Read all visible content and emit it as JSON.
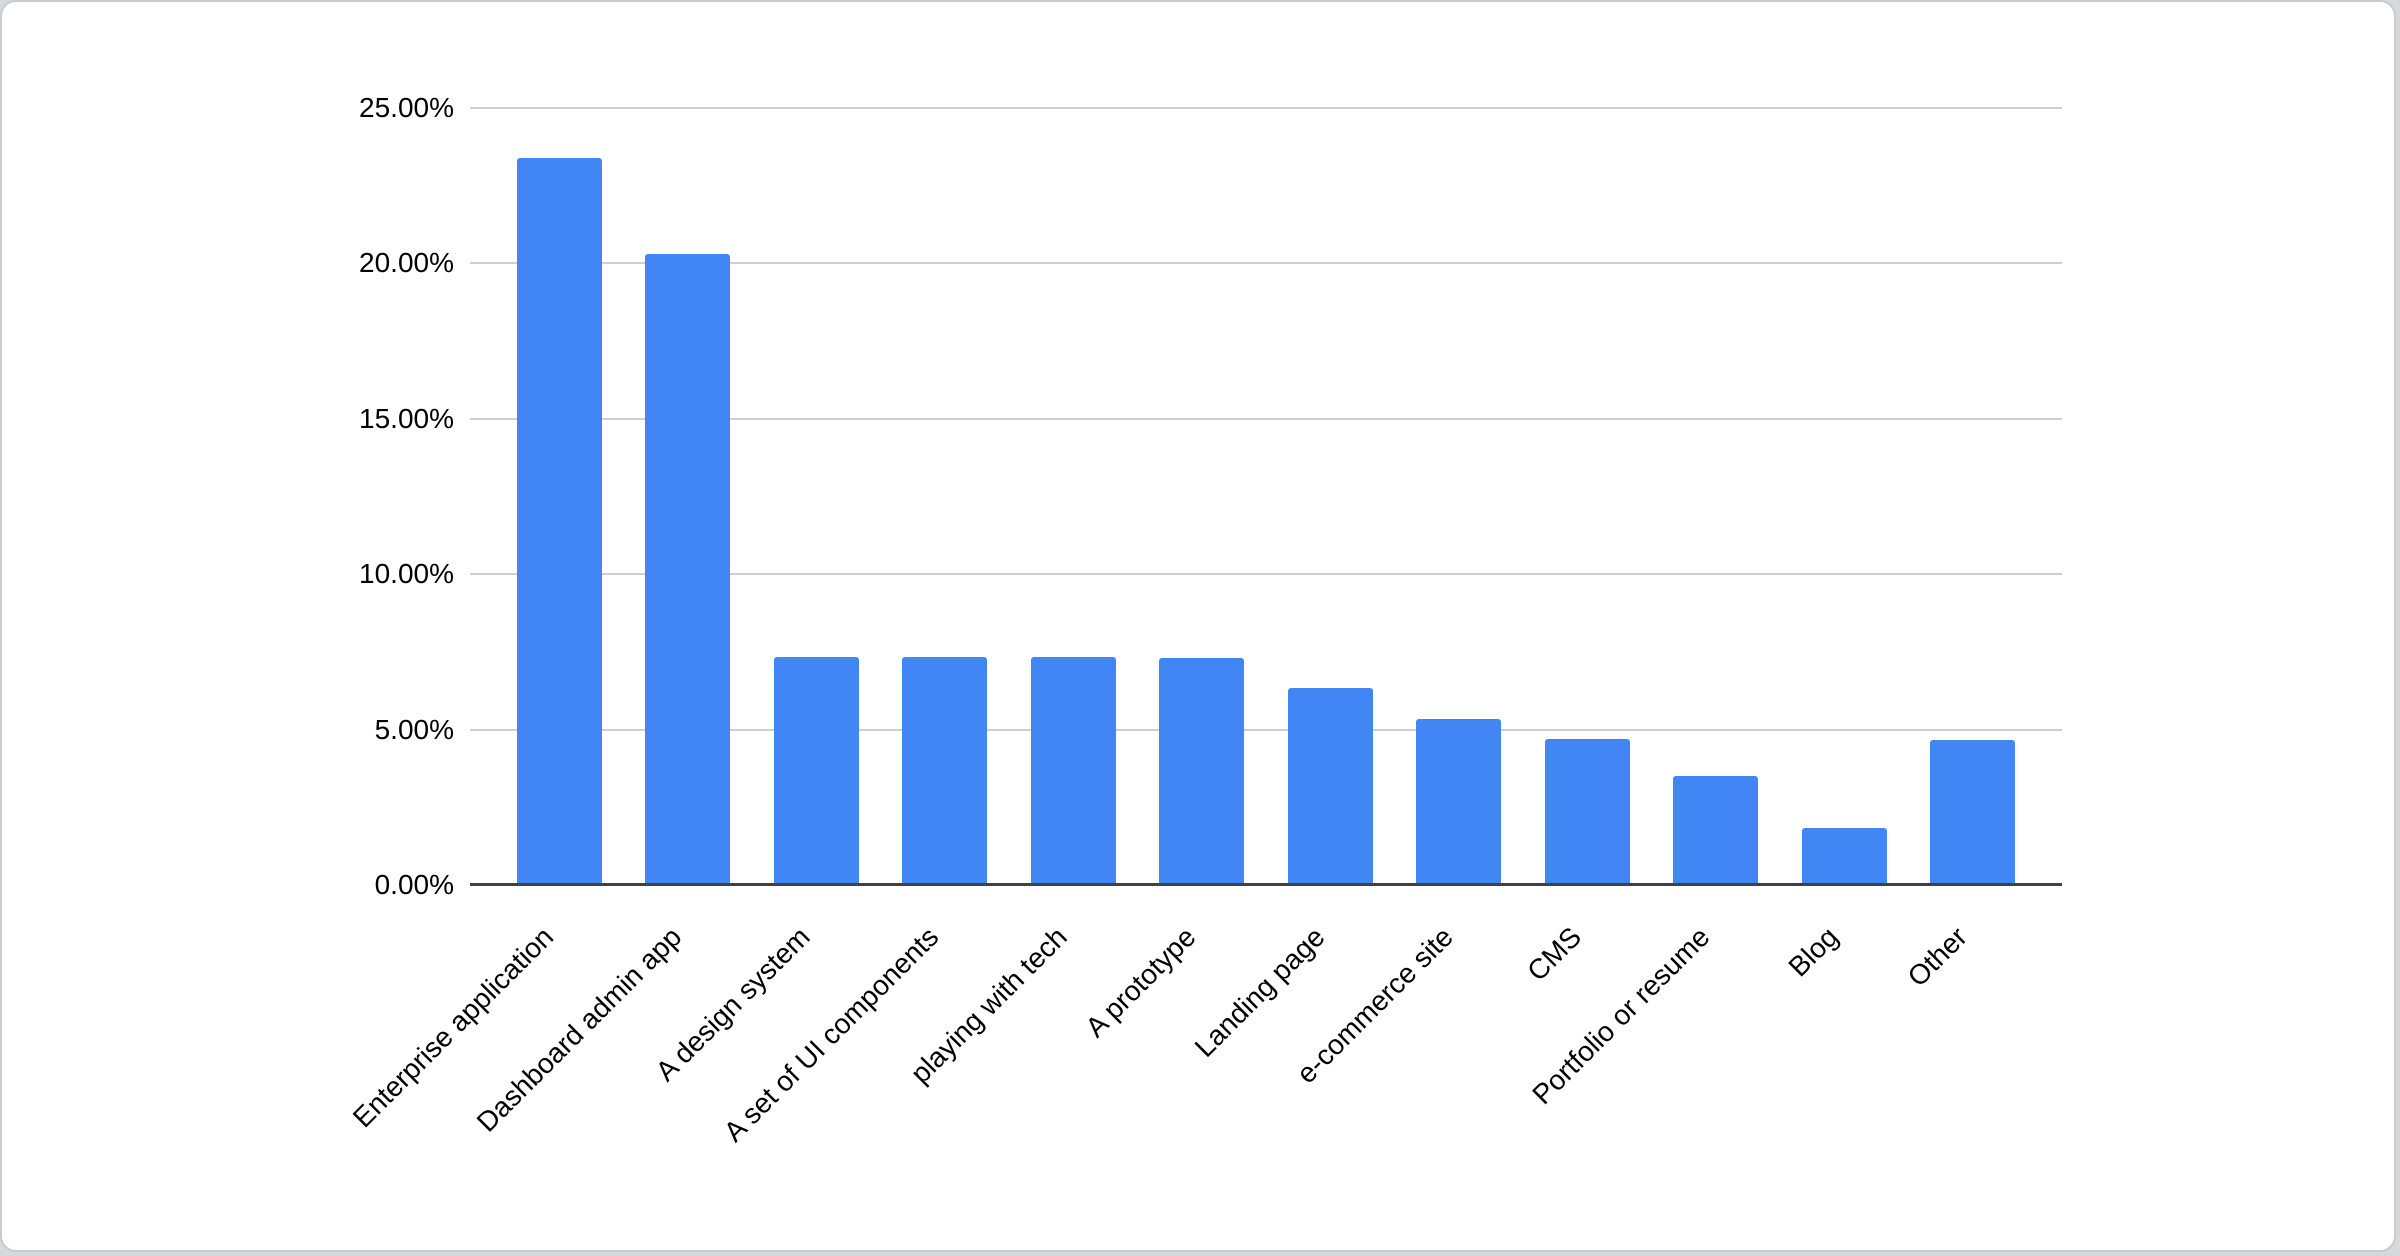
{
  "chart_data": {
    "type": "bar",
    "title": "",
    "xlabel": "",
    "ylabel": "",
    "categories": [
      "Enterprise application",
      "Dashboard admin app",
      "A design system",
      "A set of UI components",
      "playing with tech",
      "A prototype",
      "Landing page",
      "e-commerce site",
      "CMS",
      "Portfolio or resume",
      "Blog",
      "Other"
    ],
    "values": [
      23.4,
      20.3,
      7.35,
      7.35,
      7.35,
      7.3,
      6.35,
      5.35,
      4.7,
      3.5,
      1.85,
      4.65
    ],
    "value_unit": "%",
    "ylim": [
      0,
      25
    ],
    "y_ticks": [
      "25.00%",
      "20.00%",
      "15.00%",
      "10.00%",
      "5.00%",
      "0.00%"
    ],
    "y_tick_step": 5,
    "grid": true,
    "legend_position": "none",
    "x_label_rotation_deg": -45,
    "colors": {
      "bar": "#4285f4",
      "gridline": "#cfcfcf",
      "axis_line": "#3f4245",
      "tick_text": "#000000",
      "background": "#ffffff"
    }
  }
}
